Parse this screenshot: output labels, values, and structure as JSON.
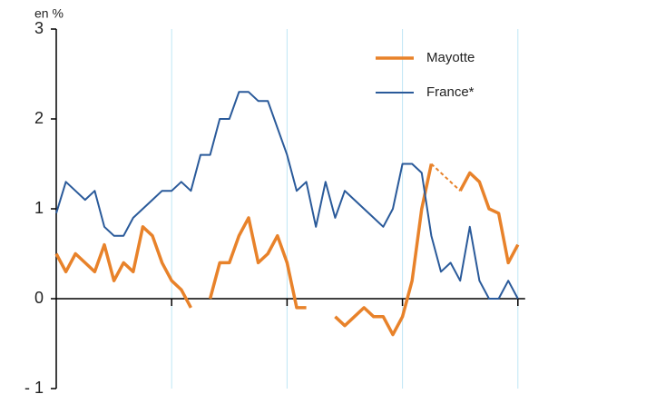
{
  "chart_data": {
    "type": "line",
    "y_unit_label": "en %",
    "series": [
      {
        "name": "Mayotte",
        "color": "#e8822a",
        "values": [
          0.5,
          0.3,
          0.5,
          0.4,
          0.3,
          0.6,
          0.2,
          0.4,
          0.3,
          0.8,
          0.7,
          0.4,
          0.2,
          0.1,
          -0.1,
          null,
          0.0,
          0.4,
          0.4,
          0.7,
          0.9,
          0.4,
          0.5,
          0.7,
          0.4,
          -0.1,
          -0.1,
          null,
          null,
          -0.2,
          -0.3,
          -0.2,
          -0.1,
          -0.2,
          -0.2,
          -0.4,
          -0.2,
          0.2,
          1.0,
          1.5,
          null,
          null,
          1.2,
          1.4,
          1.3,
          1.0,
          0.95,
          0.4,
          0.6
        ]
      },
      {
        "name": "France*",
        "color": "#2a5a9a",
        "values": [
          0.95,
          1.3,
          1.2,
          1.1,
          1.2,
          0.8,
          0.7,
          0.7,
          0.9,
          1.0,
          1.1,
          1.2,
          1.2,
          1.3,
          1.2,
          1.6,
          1.6,
          2.0,
          2.0,
          2.3,
          2.3,
          2.2,
          2.2,
          1.9,
          1.6,
          1.2,
          1.3,
          0.8,
          1.3,
          0.9,
          1.2,
          1.1,
          1.0,
          0.9,
          0.8,
          1.0,
          1.5,
          1.5,
          1.4,
          0.7,
          0.3,
          0.4,
          0.2,
          0.8,
          0.2,
          0.0,
          0.0,
          0.2,
          0.0
        ]
      }
    ],
    "ylim": [
      -1,
      3
    ],
    "yticks": [
      {
        "value": -1,
        "label": "- 1"
      },
      0,
      1,
      2,
      3
    ],
    "legend": "top-right"
  }
}
